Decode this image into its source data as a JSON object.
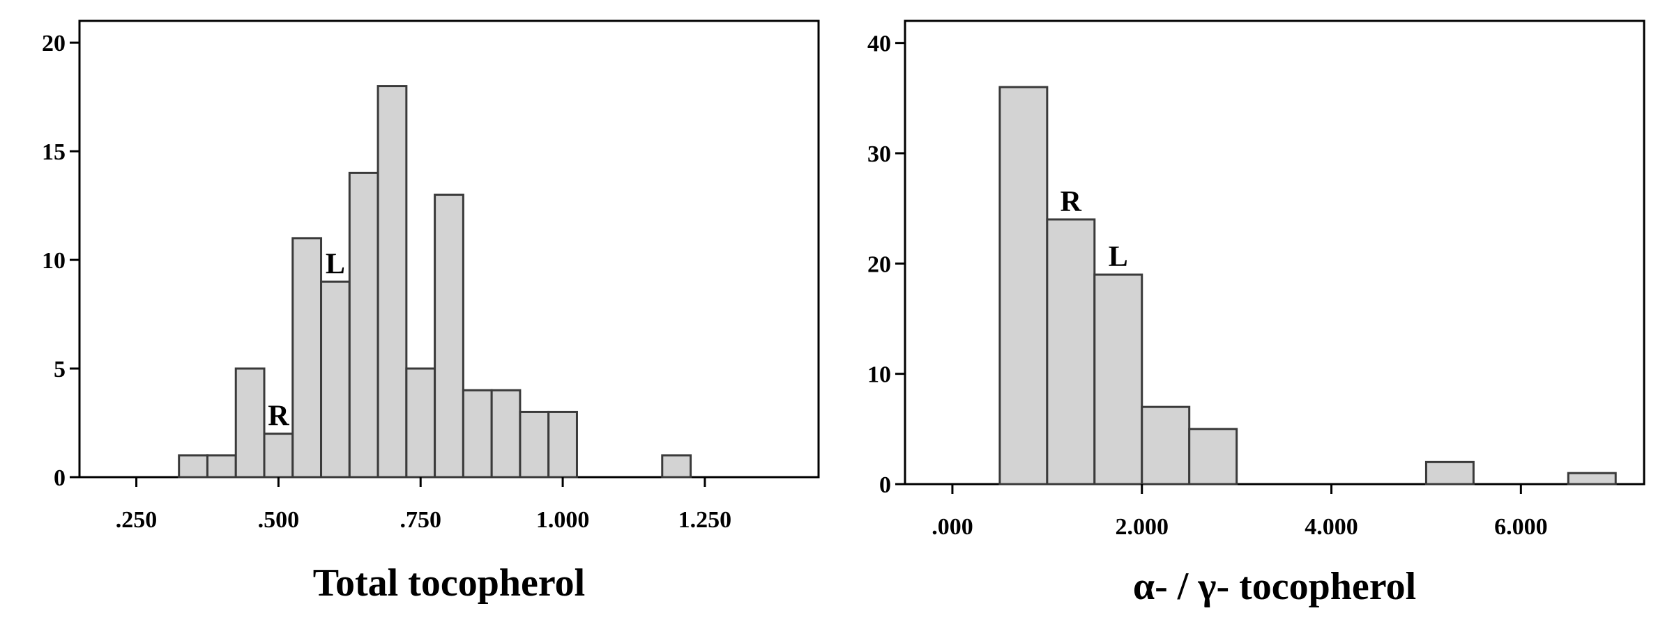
{
  "chart_data": [
    {
      "type": "bar",
      "xlabel": "Total tocopherol",
      "ylabel": "",
      "xlim": [
        0.15,
        1.45
      ],
      "ylim": [
        0,
        21
      ],
      "x_ticks": [
        0.25,
        0.5,
        0.75,
        1.0,
        1.25
      ],
      "x_tick_labels": [
        ".250",
        ".500",
        ".750",
        "1.000",
        "1.250"
      ],
      "y_ticks": [
        0,
        5,
        10,
        15,
        20
      ],
      "y_tick_labels": [
        "0",
        "5",
        "10",
        "15",
        "20"
      ],
      "bin_width": 0.05,
      "bins": [
        {
          "x0": 0.325,
          "count": 1
        },
        {
          "x0": 0.375,
          "count": 1
        },
        {
          "x0": 0.425,
          "count": 5
        },
        {
          "x0": 0.475,
          "count": 2
        },
        {
          "x0": 0.525,
          "count": 11
        },
        {
          "x0": 0.575,
          "count": 9
        },
        {
          "x0": 0.625,
          "count": 14
        },
        {
          "x0": 0.675,
          "count": 18
        },
        {
          "x0": 0.725,
          "count": 5
        },
        {
          "x0": 0.775,
          "count": 13
        },
        {
          "x0": 0.825,
          "count": 4
        },
        {
          "x0": 0.875,
          "count": 4
        },
        {
          "x0": 0.925,
          "count": 3
        },
        {
          "x0": 0.975,
          "count": 3
        },
        {
          "x0": 1.175,
          "count": 1
        }
      ],
      "annotations": [
        {
          "text": "R",
          "x": 0.5,
          "y": 2
        },
        {
          "text": "L",
          "x": 0.6,
          "y": 9
        }
      ],
      "grid": false,
      "colors": {
        "bar_fill": "#d3d3d3",
        "bar_stroke": "#3a3a3a"
      }
    },
    {
      "type": "bar",
      "xlabel": "α- / γ- tocopherol",
      "ylabel": "",
      "xlim": [
        -0.5,
        7.3
      ],
      "ylim": [
        0,
        42
      ],
      "x_ticks": [
        0,
        2,
        4,
        6
      ],
      "x_tick_labels": [
        ".000",
        "2.000",
        "4.000",
        "6.000"
      ],
      "y_ticks": [
        0,
        10,
        20,
        30,
        40
      ],
      "y_tick_labels": [
        "0",
        "10",
        "20",
        "30",
        "40"
      ],
      "bin_width": 0.5,
      "bins": [
        {
          "x0": 0.5,
          "count": 36
        },
        {
          "x0": 1.0,
          "count": 24
        },
        {
          "x0": 1.5,
          "count": 19
        },
        {
          "x0": 2.0,
          "count": 7
        },
        {
          "x0": 2.5,
          "count": 5
        },
        {
          "x0": 5.0,
          "count": 2
        },
        {
          "x0": 6.5,
          "count": 1
        }
      ],
      "annotations": [
        {
          "text": "R",
          "x": 1.25,
          "y": 24
        },
        {
          "text": "L",
          "x": 1.75,
          "y": 19
        }
      ],
      "grid": false,
      "colors": {
        "bar_fill": "#d3d3d3",
        "bar_stroke": "#3a3a3a"
      }
    }
  ]
}
